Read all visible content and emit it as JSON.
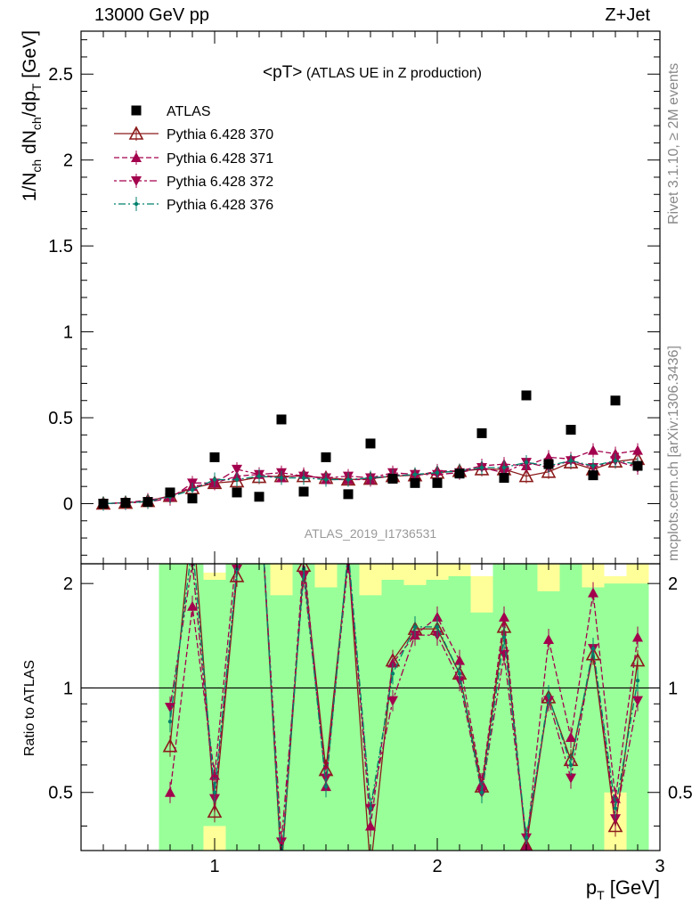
{
  "header": {
    "left": "13000 GeV pp",
    "right": "Z+Jet"
  },
  "side_labels": {
    "rivet": "Rivet 3.1.10, ≥ 2M events",
    "mcplots": "mcplots.cern.ch [arXiv:1306.3436]"
  },
  "chart_data": {
    "type": "scatter",
    "title_main": "<pT>",
    "title_sub": " (ATLAS UE in Z production)",
    "watermark": "ATLAS_2019_I1736531",
    "x": [
      0.5,
      0.6,
      0.7,
      0.8,
      0.9,
      1.0,
      1.1,
      1.2,
      1.3,
      1.4,
      1.5,
      1.6,
      1.7,
      1.8,
      1.9,
      2.0,
      2.1,
      2.2,
      2.3,
      2.4,
      2.5,
      2.6,
      2.7,
      2.8,
      2.9
    ],
    "xlim": [
      0.4,
      3.0
    ],
    "xlabel": "p_T [GeV]",
    "x_ticks": [
      "1",
      "2",
      "3"
    ],
    "ylim_main": [
      -0.35,
      2.75
    ],
    "y_ticks_main": [
      "0",
      "0.5",
      "1",
      "1.5",
      "2",
      "2.5"
    ],
    "ylabel_main": "1/N_ch dN_ch/dp_T [GeV]",
    "ylim_ratio": [
      0.34,
      2.28
    ],
    "y_ticks_ratio": [
      "0.5",
      "1",
      "2"
    ],
    "ylabel_ratio": "Ratio to ATLAS",
    "legend_position": "top-left",
    "series": [
      {
        "name": "ATLAS",
        "color": "#000000",
        "marker": "square",
        "values": [
          0.0,
          0.005,
          0.01,
          0.065,
          0.03,
          0.27,
          0.065,
          0.04,
          0.49,
          0.07,
          0.27,
          0.055,
          0.35,
          0.145,
          0.12,
          0.12,
          0.175,
          0.41,
          0.15,
          0.63,
          0.23,
          0.43,
          0.165,
          0.6,
          0.22
        ]
      },
      {
        "name": "Pythia 6.428 370",
        "color": "#8b1a1a",
        "marker": "triangle-open",
        "dash": "",
        "values": [
          0.0,
          0.005,
          0.015,
          0.045,
          0.09,
          0.12,
          0.13,
          0.155,
          0.16,
          0.16,
          0.15,
          0.14,
          0.145,
          0.16,
          0.165,
          0.18,
          0.19,
          0.2,
          0.2,
          0.16,
          0.185,
          0.24,
          0.2,
          0.245,
          0.26
        ]
      },
      {
        "name": "Pythia 6.428 371",
        "color": "#a3004d",
        "marker": "triangle-up",
        "dash": "6,3",
        "values": [
          0.0,
          0.006,
          0.02,
          0.04,
          0.1,
          0.12,
          0.16,
          0.17,
          0.15,
          0.17,
          0.14,
          0.14,
          0.14,
          0.17,
          0.16,
          0.19,
          0.19,
          0.22,
          0.23,
          0.22,
          0.27,
          0.26,
          0.31,
          0.29,
          0.31
        ]
      },
      {
        "name": "Pythia 6.428 372",
        "color": "#a3004d",
        "marker": "triangle-down",
        "dash": "3,3,8,3",
        "values": [
          0.0,
          0.004,
          0.01,
          0.03,
          0.12,
          0.12,
          0.2,
          0.17,
          0.18,
          0.16,
          0.15,
          0.16,
          0.15,
          0.18,
          0.17,
          0.17,
          0.18,
          0.21,
          0.18,
          0.24,
          0.21,
          0.25,
          0.21,
          0.25,
          0.21
        ]
      },
      {
        "name": "Pythia 6.428 376",
        "color": "#00806b",
        "marker": "dot",
        "dash": "2,3,8,3",
        "values": [
          0.0,
          0.005,
          0.012,
          0.04,
          0.08,
          0.14,
          0.14,
          0.16,
          0.15,
          0.15,
          0.14,
          0.14,
          0.15,
          0.16,
          0.17,
          0.18,
          0.19,
          0.21,
          0.21,
          0.24,
          0.22,
          0.25,
          0.22,
          0.25,
          0.23
        ]
      }
    ],
    "ratio_series": [
      {
        "name": "Pythia 6.428 370",
        "values": [
          null,
          null,
          null,
          0.68,
          3.2,
          0.44,
          2.1,
          4.0,
          0.3,
          2.25,
          0.58,
          2.4,
          0.3,
          1.2,
          1.48,
          1.48,
          1.1,
          0.52,
          1.5,
          0.35,
          0.94,
          0.62,
          1.25,
          0.4,
          1.2
        ]
      },
      {
        "name": "Pythia 6.428 371",
        "values": [
          null,
          null,
          null,
          0.5,
          1.72,
          0.56,
          2.5,
          4.2,
          0.31,
          2.4,
          0.52,
          2.45,
          0.4,
          1.18,
          1.42,
          1.6,
          1.2,
          0.53,
          1.6,
          0.35,
          1.38,
          0.72,
          1.88,
          0.48,
          1.4
        ]
      },
      {
        "name": "Pythia 6.428 372",
        "values": [
          null,
          null,
          null,
          0.88,
          2.3,
          0.48,
          2.2,
          3.8,
          0.36,
          2.1,
          0.55,
          2.3,
          0.45,
          0.92,
          1.42,
          1.42,
          1.05,
          0.5,
          1.25,
          0.37,
          0.92,
          0.55,
          1.3,
          0.42,
          0.92
        ]
      },
      {
        "name": "Pythia 6.428 376",
        "values": [
          null,
          null,
          null,
          0.8,
          2.6,
          0.5,
          2.2,
          4.0,
          0.31,
          2.2,
          0.52,
          2.5,
          0.45,
          1.1,
          1.5,
          1.5,
          1.1,
          0.5,
          1.4,
          0.37,
          0.95,
          0.6,
          1.3,
          0.45,
          1.05
        ]
      }
    ],
    "uncertainty_bands": [
      {
        "xlo": 0.75,
        "xhi": 0.85,
        "lo": 0.34,
        "hi": 2.28,
        "ylo": 0.34,
        "yhi": 2.28
      },
      {
        "xlo": 0.85,
        "xhi": 0.95,
        "lo": 0.34,
        "hi": 2.28,
        "ylo": 0.34,
        "yhi": 2.28
      },
      {
        "xlo": 0.95,
        "xhi": 1.05,
        "lo": 0.4,
        "hi": 2.05,
        "ylo": 0.34,
        "yhi": 2.15
      },
      {
        "xlo": 1.05,
        "xhi": 1.15,
        "lo": 0.34,
        "hi": 2.28,
        "ylo": 0.34,
        "yhi": 2.28
      },
      {
        "xlo": 1.15,
        "xhi": 1.25,
        "lo": 0.34,
        "hi": 2.28,
        "ylo": 0.34,
        "yhi": 2.28
      },
      {
        "xlo": 1.25,
        "xhi": 1.35,
        "lo": 0.34,
        "hi": 1.85,
        "ylo": 0.34,
        "yhi": 2.28
      },
      {
        "xlo": 1.35,
        "xhi": 1.45,
        "lo": 0.34,
        "hi": 2.28,
        "ylo": 0.34,
        "yhi": 2.28
      },
      {
        "xlo": 1.45,
        "xhi": 1.55,
        "lo": 0.34,
        "hi": 1.95,
        "ylo": 0.34,
        "yhi": 2.28
      },
      {
        "xlo": 1.55,
        "xhi": 1.65,
        "lo": 0.34,
        "hi": 2.28,
        "ylo": 0.34,
        "yhi": 2.28
      },
      {
        "xlo": 1.65,
        "xhi": 1.75,
        "lo": 0.34,
        "hi": 1.85,
        "ylo": 0.34,
        "yhi": 2.28
      },
      {
        "xlo": 1.75,
        "xhi": 1.85,
        "lo": 0.34,
        "hi": 2.05,
        "ylo": 0.34,
        "yhi": 2.28
      },
      {
        "xlo": 1.85,
        "xhi": 1.95,
        "lo": 0.34,
        "hi": 1.98,
        "ylo": 0.34,
        "yhi": 2.28
      },
      {
        "xlo": 1.95,
        "xhi": 2.05,
        "lo": 0.34,
        "hi": 2.05,
        "ylo": 0.34,
        "yhi": 2.28
      },
      {
        "xlo": 2.05,
        "xhi": 2.15,
        "lo": 0.34,
        "hi": 2.1,
        "ylo": 0.34,
        "yhi": 2.28
      },
      {
        "xlo": 2.15,
        "xhi": 2.25,
        "lo": 0.34,
        "hi": 1.65,
        "ylo": 0.34,
        "yhi": 2.1
      },
      {
        "xlo": 2.25,
        "xhi": 2.35,
        "lo": 0.34,
        "hi": 2.28,
        "ylo": 0.34,
        "yhi": 2.28
      },
      {
        "xlo": 2.35,
        "xhi": 2.45,
        "lo": 0.34,
        "hi": 2.28,
        "ylo": 0.34,
        "yhi": 2.28
      },
      {
        "xlo": 2.45,
        "xhi": 2.55,
        "lo": 0.34,
        "hi": 1.9,
        "ylo": 0.34,
        "yhi": 2.28
      },
      {
        "xlo": 2.55,
        "xhi": 2.65,
        "lo": 0.34,
        "hi": 2.28,
        "ylo": 0.34,
        "yhi": 2.28
      },
      {
        "xlo": 2.65,
        "xhi": 2.75,
        "lo": 0.34,
        "hi": 1.95,
        "ylo": 0.34,
        "yhi": 2.28
      },
      {
        "xlo": 2.75,
        "xhi": 2.85,
        "lo": 0.5,
        "hi": 2.0,
        "ylo": 0.34,
        "yhi": 2.1
      },
      {
        "xlo": 2.85,
        "xhi": 2.95,
        "lo": 0.34,
        "hi": 2.0,
        "ylo": 0.34,
        "yhi": 2.28
      }
    ]
  }
}
